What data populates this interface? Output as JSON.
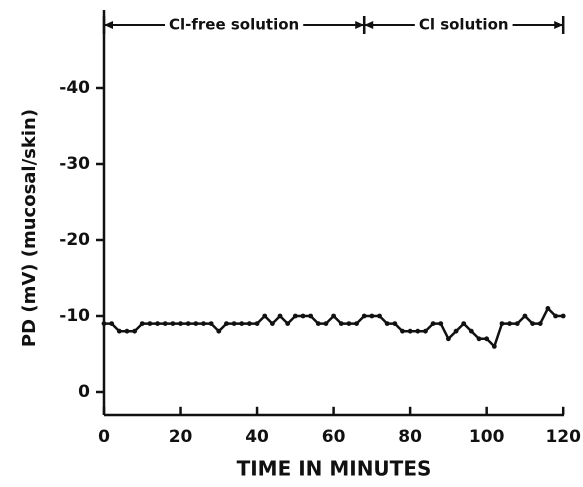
{
  "chart_data": {
    "type": "line",
    "xlabel": "TIME IN MINUTES",
    "ylabel": "PD (mV) (mucosal/skin)",
    "x": [
      0,
      2,
      4,
      6,
      8,
      10,
      12,
      14,
      16,
      18,
      20,
      22,
      24,
      26,
      28,
      30,
      32,
      34,
      36,
      38,
      40,
      42,
      44,
      46,
      48,
      50,
      52,
      54,
      56,
      58,
      60,
      62,
      64,
      66,
      68,
      70,
      72,
      74,
      76,
      78,
      80,
      82,
      84,
      86,
      88,
      90,
      92,
      94,
      96,
      98,
      100,
      102,
      104,
      106,
      108,
      110,
      112,
      114,
      116,
      118,
      120
    ],
    "series": [
      {
        "color": "#111111",
        "values": [
          -9,
          -9,
          -8,
          -8,
          -8,
          -9,
          -9,
          -9,
          -9,
          -9,
          -9,
          -9,
          -9,
          -9,
          -9,
          -8,
          -9,
          -9,
          -9,
          -9,
          -9,
          -10,
          -9,
          -10,
          -9,
          -10,
          -10,
          -10,
          -9,
          -9,
          -10,
          -9,
          -9,
          -9,
          -10,
          -10,
          -10,
          -9,
          -9,
          -8,
          -8,
          -8,
          -8,
          -9,
          -9,
          -7,
          -8,
          -9,
          -8,
          -7,
          -7,
          -6,
          -9,
          -9,
          -9,
          -10,
          -9,
          -9,
          -11,
          -10,
          -10
        ]
      }
    ],
    "xlim": [
      0,
      120
    ],
    "xticks": [
      0,
      20,
      40,
      60,
      80,
      100,
      120
    ],
    "ylim": [
      3,
      -50
    ],
    "yticks": [
      0,
      -10,
      -20,
      -30,
      -40
    ],
    "phases": [
      {
        "label": "Cl-free solution",
        "start": 0,
        "end": 68
      },
      {
        "label": "Cl solution",
        "start": 68,
        "end": 120
      }
    ]
  }
}
